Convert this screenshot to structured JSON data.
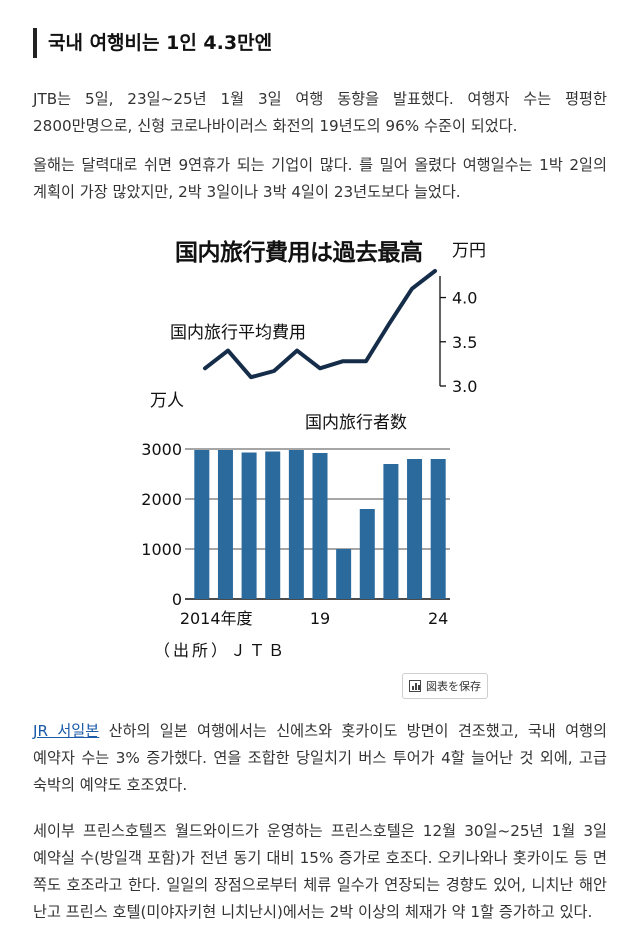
{
  "article": {
    "heading": "국내 여행비는 1인 4.3만엔",
    "p1": "JTB는 5일, 23일~25년 1월 3일 여행 동향을 발표했다. 여행자 수는 평평한 2800만명으로, 신형 코로나바이러스 화전의 19년도의 96% 수준이 되었다.",
    "p2": "올해는 달력대로 쉬면 9연휴가 되는 기업이 많다. 를 밀어 올렸다 여행일수는 1박 2일의 계획이 가장 많았지만, 2박 3일이나 3박 4일이 23년도보다 늘었다.",
    "p3_link": "JR 서일본",
    "p3_rest": " 산하의 일본 여행에서는 신에츠와 홋카이도 방면이 견조했고, 국내 여행의 예약자 수는 3% 증가했다. 연을 조합한 당일치기 버스 투어가 4할 늘어난 것 외에, 고급 숙박의 예약도 호조였다.",
    "p4": "세이부 프린스호텔즈 월드와이드가 운영하는 프린스호텔은 12월 30일~25년 1월 3일 예약실 수(방일객 포함)가 전년 동기 대비 15% 증가로 호조다. 오키나와나 홋카이도 등 면 쪽도 호조라고 한다. 일일의 장점으로부터 체류 일수가 연장되는 경향도 있어, 니치난 해안 난고 프린스 호텔(미야자키현 니치난시)에서는 2박 이상의 체재가 약 1할 증가하고 있다."
  },
  "save_button": {
    "label": "図表を保存",
    "icon": "bar-chart-icon"
  },
  "chart_data": {
    "type": "combo",
    "title": "国内旅行費用は過去最高",
    "source": "（出所）ＪＴＢ",
    "line": {
      "name": "国内旅行平均費用",
      "unit": "万円",
      "ylim": [
        3.0,
        4.3
      ],
      "ticks": [
        3.0,
        3.5,
        4.0
      ],
      "tick_labels": [
        "3.0",
        "3.5",
        "4.0"
      ],
      "values": [
        3.2,
        3.4,
        3.1,
        3.17,
        3.4,
        3.2,
        3.28,
        3.28,
        3.7,
        4.1,
        4.3
      ]
    },
    "bars": {
      "name": "国内旅行者数",
      "unit": "万人",
      "ylim": [
        0,
        3000
      ],
      "ticks": [
        0,
        1000,
        2000,
        3000
      ],
      "tick_labels": [
        "0",
        "1000",
        "2000",
        "3000"
      ],
      "values": [
        2980,
        2980,
        2930,
        2950,
        2980,
        2920,
        1000,
        1800,
        2700,
        2800,
        2800
      ]
    },
    "x_labels": {
      "first": "2014年度",
      "mid": "19",
      "last": "24"
    },
    "colors": {
      "bar": "#2b6a9d",
      "line": "#162d4a",
      "axis": "#111111"
    }
  }
}
